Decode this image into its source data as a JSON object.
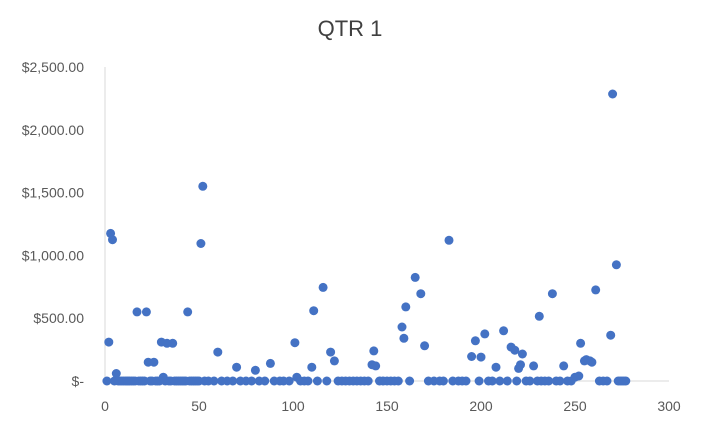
{
  "chart_data": {
    "type": "scatter",
    "title": "QTR 1",
    "xlabel": "",
    "ylabel": "",
    "xlim": [
      0,
      300
    ],
    "ylim": [
      0,
      2500
    ],
    "x_ticks": [
      0,
      50,
      100,
      150,
      200,
      250,
      300
    ],
    "y_ticks": [
      0,
      500,
      1000,
      1500,
      2000,
      2500
    ],
    "x_tick_labels": [
      "0",
      "50",
      "100",
      "150",
      "200",
      "250",
      "300"
    ],
    "y_tick_labels": [
      "$-",
      "$500.00",
      "$1,000.00",
      "$1,500.00",
      "$2,000.00",
      "$2,500.00"
    ],
    "grid": false,
    "legend": "none",
    "marker_color": "#4472C4",
    "series": [
      {
        "points": [
          [
            1,
            0
          ],
          [
            2,
            310
          ],
          [
            3,
            1175
          ],
          [
            4,
            1125
          ],
          [
            5,
            0
          ],
          [
            6,
            60
          ],
          [
            7,
            0
          ],
          [
            8,
            0
          ],
          [
            9,
            0
          ],
          [
            10,
            0
          ],
          [
            11,
            0
          ],
          [
            12,
            0
          ],
          [
            13,
            0
          ],
          [
            14,
            0
          ],
          [
            15,
            0
          ],
          [
            16,
            0
          ],
          [
            17,
            550
          ],
          [
            18,
            0
          ],
          [
            19,
            0
          ],
          [
            20,
            0
          ],
          [
            21,
            0
          ],
          [
            22,
            550
          ],
          [
            23,
            150
          ],
          [
            24,
            0
          ],
          [
            25,
            0
          ],
          [
            26,
            150
          ],
          [
            27,
            0
          ],
          [
            28,
            0
          ],
          [
            29,
            0
          ],
          [
            30,
            310
          ],
          [
            31,
            30
          ],
          [
            32,
            0
          ],
          [
            33,
            300
          ],
          [
            34,
            0
          ],
          [
            35,
            0
          ],
          [
            36,
            300
          ],
          [
            37,
            0
          ],
          [
            38,
            0
          ],
          [
            39,
            0
          ],
          [
            40,
            0
          ],
          [
            41,
            0
          ],
          [
            42,
            0
          ],
          [
            43,
            0
          ],
          [
            44,
            550
          ],
          [
            45,
            0
          ],
          [
            46,
            0
          ],
          [
            47,
            0
          ],
          [
            48,
            0
          ],
          [
            49,
            0
          ],
          [
            50,
            0
          ],
          [
            51,
            1095
          ],
          [
            52,
            1550
          ],
          [
            53,
            0
          ],
          [
            55,
            0
          ],
          [
            58,
            0
          ],
          [
            60,
            230
          ],
          [
            62,
            0
          ],
          [
            65,
            0
          ],
          [
            68,
            0
          ],
          [
            70,
            110
          ],
          [
            72,
            0
          ],
          [
            75,
            0
          ],
          [
            78,
            0
          ],
          [
            80,
            85
          ],
          [
            82,
            0
          ],
          [
            85,
            0
          ],
          [
            88,
            140
          ],
          [
            90,
            0
          ],
          [
            93,
            0
          ],
          [
            95,
            0
          ],
          [
            98,
            0
          ],
          [
            101,
            305
          ],
          [
            102,
            30
          ],
          [
            104,
            0
          ],
          [
            106,
            0
          ],
          [
            108,
            0
          ],
          [
            110,
            110
          ],
          [
            111,
            560
          ],
          [
            113,
            0
          ],
          [
            116,
            745
          ],
          [
            118,
            0
          ],
          [
            120,
            230
          ],
          [
            122,
            160
          ],
          [
            124,
            0
          ],
          [
            126,
            0
          ],
          [
            128,
            0
          ],
          [
            130,
            0
          ],
          [
            132,
            0
          ],
          [
            134,
            0
          ],
          [
            136,
            0
          ],
          [
            138,
            0
          ],
          [
            140,
            0
          ],
          [
            142,
            130
          ],
          [
            143,
            240
          ],
          [
            144,
            120
          ],
          [
            146,
            0
          ],
          [
            148,
            0
          ],
          [
            150,
            0
          ],
          [
            152,
            0
          ],
          [
            154,
            0
          ],
          [
            156,
            0
          ],
          [
            158,
            430
          ],
          [
            159,
            340
          ],
          [
            160,
            590
          ],
          [
            162,
            0
          ],
          [
            165,
            825
          ],
          [
            168,
            695
          ],
          [
            170,
            280
          ],
          [
            172,
            0
          ],
          [
            175,
            0
          ],
          [
            178,
            0
          ],
          [
            180,
            0
          ],
          [
            183,
            1120
          ],
          [
            185,
            0
          ],
          [
            188,
            0
          ],
          [
            190,
            0
          ],
          [
            192,
            0
          ],
          [
            195,
            195
          ],
          [
            197,
            320
          ],
          [
            199,
            0
          ],
          [
            200,
            190
          ],
          [
            202,
            375
          ],
          [
            204,
            0
          ],
          [
            206,
            0
          ],
          [
            208,
            110
          ],
          [
            210,
            0
          ],
          [
            212,
            400
          ],
          [
            214,
            0
          ],
          [
            216,
            270
          ],
          [
            218,
            245
          ],
          [
            219,
            0
          ],
          [
            220,
            100
          ],
          [
            221,
            130
          ],
          [
            222,
            215
          ],
          [
            224,
            0
          ],
          [
            226,
            0
          ],
          [
            228,
            120
          ],
          [
            230,
            0
          ],
          [
            231,
            515
          ],
          [
            232,
            0
          ],
          [
            234,
            0
          ],
          [
            236,
            0
          ],
          [
            238,
            695
          ],
          [
            240,
            0
          ],
          [
            242,
            0
          ],
          [
            244,
            120
          ],
          [
            246,
            0
          ],
          [
            248,
            0
          ],
          [
            250,
            30
          ],
          [
            252,
            40
          ],
          [
            253,
            300
          ],
          [
            255,
            160
          ],
          [
            256,
            170
          ],
          [
            258,
            160
          ],
          [
            259,
            150
          ],
          [
            261,
            725
          ],
          [
            263,
            0
          ],
          [
            265,
            0
          ],
          [
            267,
            0
          ],
          [
            269,
            365
          ],
          [
            270,
            2285
          ],
          [
            272,
            925
          ],
          [
            273,
            0
          ],
          [
            274,
            0
          ],
          [
            275,
            0
          ],
          [
            276,
            0
          ],
          [
            277,
            0
          ]
        ]
      }
    ]
  }
}
